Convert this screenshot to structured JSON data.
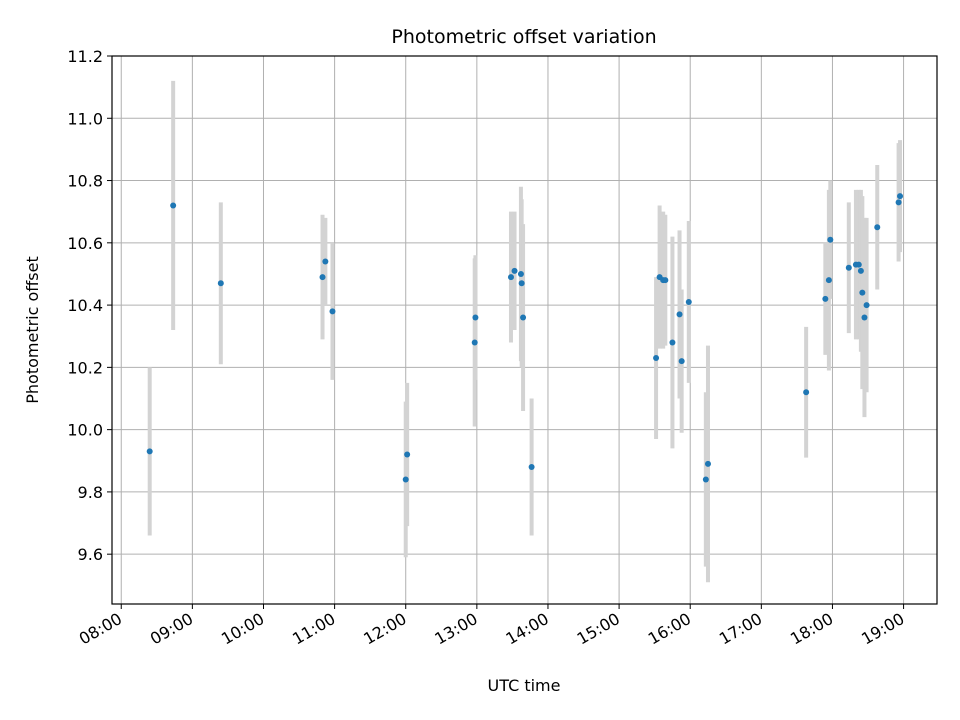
{
  "chart_data": {
    "type": "scatter",
    "title": "Photometric offset variation",
    "xlabel": "UTC time",
    "ylabel": "Photometric offset",
    "x_unit": "hours UTC",
    "xlim": [
      7.87,
      19.47
    ],
    "ylim": [
      9.44,
      11.2
    ],
    "x_ticks": [
      "08:00",
      "09:00",
      "10:00",
      "11:00",
      "12:00",
      "13:00",
      "14:00",
      "15:00",
      "16:00",
      "17:00",
      "18:00",
      "19:00"
    ],
    "x_tick_values": [
      8,
      9,
      10,
      11,
      12,
      13,
      14,
      15,
      16,
      17,
      18,
      19
    ],
    "y_ticks": [
      "9.6",
      "9.8",
      "10.0",
      "10.2",
      "10.4",
      "10.6",
      "10.8",
      "11.0",
      "11.2"
    ],
    "y_tick_values": [
      9.6,
      9.8,
      10.0,
      10.2,
      10.4,
      10.6,
      10.8,
      11.0,
      11.2
    ],
    "grid": true,
    "colors": {
      "point": "#1f77b4",
      "errorbar": "#d3d3d3",
      "grid": "#b0b0b0",
      "axis": "#000000"
    },
    "points": [
      {
        "x": 8.4,
        "y": 9.93,
        "err": 0.27
      },
      {
        "x": 8.73,
        "y": 10.72,
        "err": 0.4
      },
      {
        "x": 9.4,
        "y": 10.47,
        "err": 0.26
      },
      {
        "x": 10.83,
        "y": 10.49,
        "err": 0.2
      },
      {
        "x": 10.87,
        "y": 10.54,
        "err": 0.14
      },
      {
        "x": 10.97,
        "y": 10.38,
        "err": 0.22
      },
      {
        "x": 12.0,
        "y": 9.84,
        "err": 0.25
      },
      {
        "x": 12.02,
        "y": 9.92,
        "err": 0.23
      },
      {
        "x": 12.97,
        "y": 10.28,
        "err": 0.27
      },
      {
        "x": 12.98,
        "y": 10.36,
        "err": 0.2
      },
      {
        "x": 13.48,
        "y": 10.49,
        "err": 0.21
      },
      {
        "x": 13.53,
        "y": 10.51,
        "err": 0.19
      },
      {
        "x": 13.62,
        "y": 10.5,
        "err": 0.28
      },
      {
        "x": 13.63,
        "y": 10.47,
        "err": 0.27
      },
      {
        "x": 13.65,
        "y": 10.36,
        "err": 0.3
      },
      {
        "x": 13.77,
        "y": 9.88,
        "err": 0.22
      },
      {
        "x": 15.52,
        "y": 10.23,
        "err": 0.26
      },
      {
        "x": 15.57,
        "y": 10.49,
        "err": 0.23
      },
      {
        "x": 15.62,
        "y": 10.48,
        "err": 0.22
      },
      {
        "x": 15.65,
        "y": 10.48,
        "err": 0.21
      },
      {
        "x": 15.75,
        "y": 10.28,
        "err": 0.34
      },
      {
        "x": 15.85,
        "y": 10.37,
        "err": 0.27
      },
      {
        "x": 15.88,
        "y": 10.22,
        "err": 0.23
      },
      {
        "x": 15.98,
        "y": 10.41,
        "err": 0.26
      },
      {
        "x": 16.22,
        "y": 9.84,
        "err": 0.28
      },
      {
        "x": 16.25,
        "y": 9.89,
        "err": 0.38
      },
      {
        "x": 17.63,
        "y": 10.12,
        "err": 0.21
      },
      {
        "x": 17.9,
        "y": 10.42,
        "err": 0.18
      },
      {
        "x": 17.95,
        "y": 10.48,
        "err": 0.29
      },
      {
        "x": 17.97,
        "y": 10.61,
        "err": 0.19
      },
      {
        "x": 18.23,
        "y": 10.52,
        "err": 0.21
      },
      {
        "x": 18.33,
        "y": 10.53,
        "err": 0.24
      },
      {
        "x": 18.37,
        "y": 10.53,
        "err": 0.24
      },
      {
        "x": 18.4,
        "y": 10.51,
        "err": 0.26
      },
      {
        "x": 18.42,
        "y": 10.44,
        "err": 0.31
      },
      {
        "x": 18.45,
        "y": 10.36,
        "err": 0.32
      },
      {
        "x": 18.48,
        "y": 10.4,
        "err": 0.28
      },
      {
        "x": 18.63,
        "y": 10.65,
        "err": 0.2
      },
      {
        "x": 18.93,
        "y": 10.73,
        "err": 0.19
      },
      {
        "x": 18.95,
        "y": 10.75,
        "err": 0.18
      }
    ]
  }
}
